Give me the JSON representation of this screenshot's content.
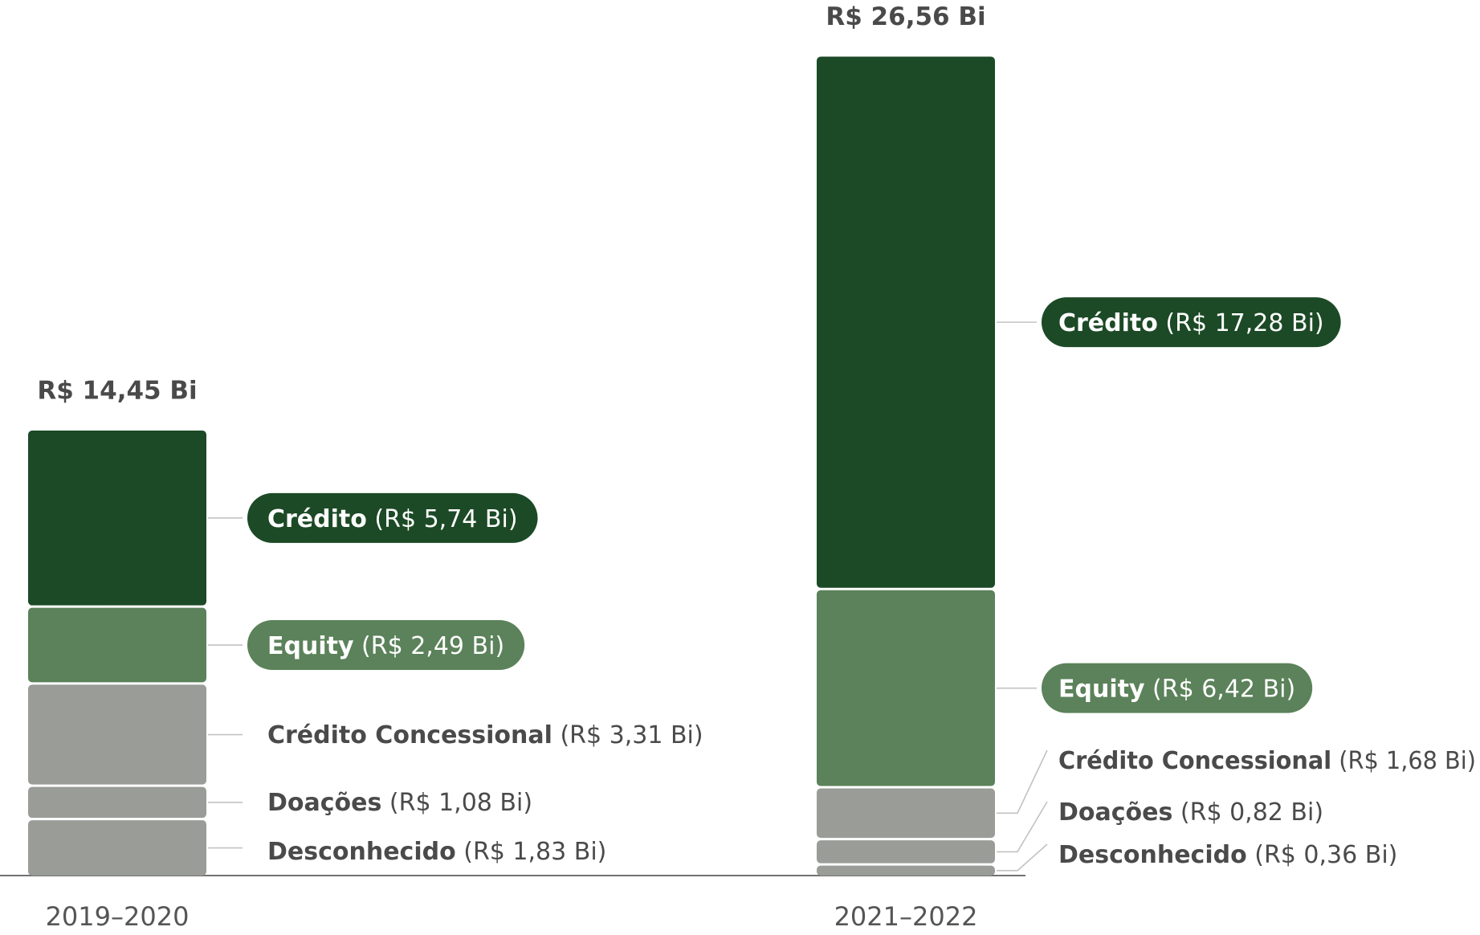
{
  "chart_data": {
    "type": "bar",
    "stacked": true,
    "categories": [
      "2019–2020",
      "2021–2022"
    ],
    "totals": [
      "R$ 14,45 Bi",
      "R$ 26,56 Bi"
    ],
    "unit": "R$ Bi",
    "series": [
      {
        "name": "Desconhecido",
        "values": [
          1.83,
          0.36
        ],
        "value_labels": [
          "(R$ 1,83 Bi)",
          "(R$ 0,36 Bi)"
        ],
        "color": "#9a9c98",
        "label_style": "plain"
      },
      {
        "name": "Doações",
        "values": [
          1.08,
          0.82
        ],
        "value_labels": [
          "(R$ 1,08 Bi)",
          "(R$ 0,82 Bi)"
        ],
        "color": "#9a9c98",
        "label_style": "plain"
      },
      {
        "name": "Crédito Concessional",
        "values": [
          3.31,
          1.68
        ],
        "value_labels": [
          "(R$ 3,31 Bi)",
          "(R$ 1,68 Bi)"
        ],
        "color": "#9a9c98",
        "label_style": "plain"
      },
      {
        "name": "Equity",
        "values": [
          2.49,
          6.42
        ],
        "value_labels": [
          "(R$ 2,49 Bi)",
          "(R$ 6,42 Bi)"
        ],
        "color": "#5b825a",
        "label_style": "pill"
      },
      {
        "name": "Crédito",
        "values": [
          5.74,
          17.28
        ],
        "value_labels": [
          "(R$ 5,74 Bi)",
          "(R$ 17,28 Bi)"
        ],
        "color": "#1c4a26",
        "label_style": "pill"
      }
    ],
    "ylim": [
      0,
      26.56
    ],
    "grid": false,
    "legend": "none"
  }
}
